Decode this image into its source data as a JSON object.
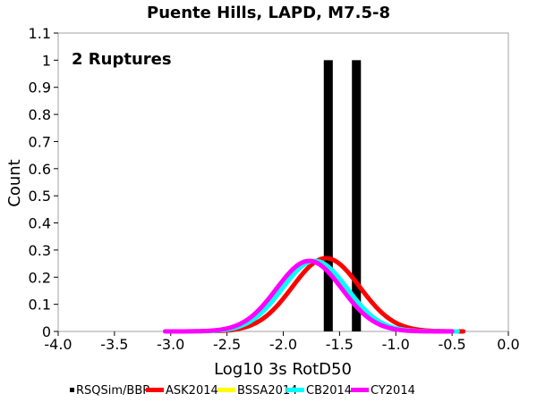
{
  "chart_data": {
    "type": "bar",
    "title": "Puente Hills, LAPD, M7.5-8",
    "xlabel": "Log10 3s RotD50",
    "ylabel": "Count",
    "annotation": "2 Ruptures",
    "xlim": [
      -4.0,
      0.0
    ],
    "ylim": [
      0,
      1.1
    ],
    "x_ticks": [
      "-4.0",
      "-3.5",
      "-3.0",
      "-2.5",
      "-2.0",
      "-1.5",
      "-1.0",
      "-0.5",
      "0.0"
    ],
    "y_ticks": [
      "0",
      "0.1",
      "0.2",
      "0.3",
      "0.4",
      "0.5",
      "0.6",
      "0.7",
      "0.8",
      "0.9",
      "1",
      "1.1"
    ],
    "grid": true,
    "legend_position": "bottom",
    "histogram": {
      "name": "RSQSim/BBP",
      "color": "#000000",
      "bin_width": 0.08,
      "bins": [
        {
          "x": -1.6,
          "count": 1
        },
        {
          "x": -1.35,
          "count": 1
        }
      ]
    },
    "curves": [
      {
        "name": "ASK2014",
        "color": "#ff0000",
        "mean": -1.62,
        "sigma": 0.3,
        "peak": 0.27,
        "x_range": [
          -2.6,
          -0.4
        ]
      },
      {
        "name": "BSSA2014",
        "color": "#ffff00",
        "mean": -1.73,
        "sigma": 0.29,
        "peak": 0.26,
        "x_range": [
          -3.05,
          -0.5
        ]
      },
      {
        "name": "CB2014",
        "color": "#00ffff",
        "mean": -1.72,
        "sigma": 0.29,
        "peak": 0.26,
        "x_range": [
          -3.05,
          -0.45
        ]
      },
      {
        "name": "CY2014",
        "color": "#ff00ff",
        "mean": -1.77,
        "sigma": 0.29,
        "peak": 0.26,
        "x_range": [
          -3.05,
          -0.5
        ]
      }
    ]
  }
}
